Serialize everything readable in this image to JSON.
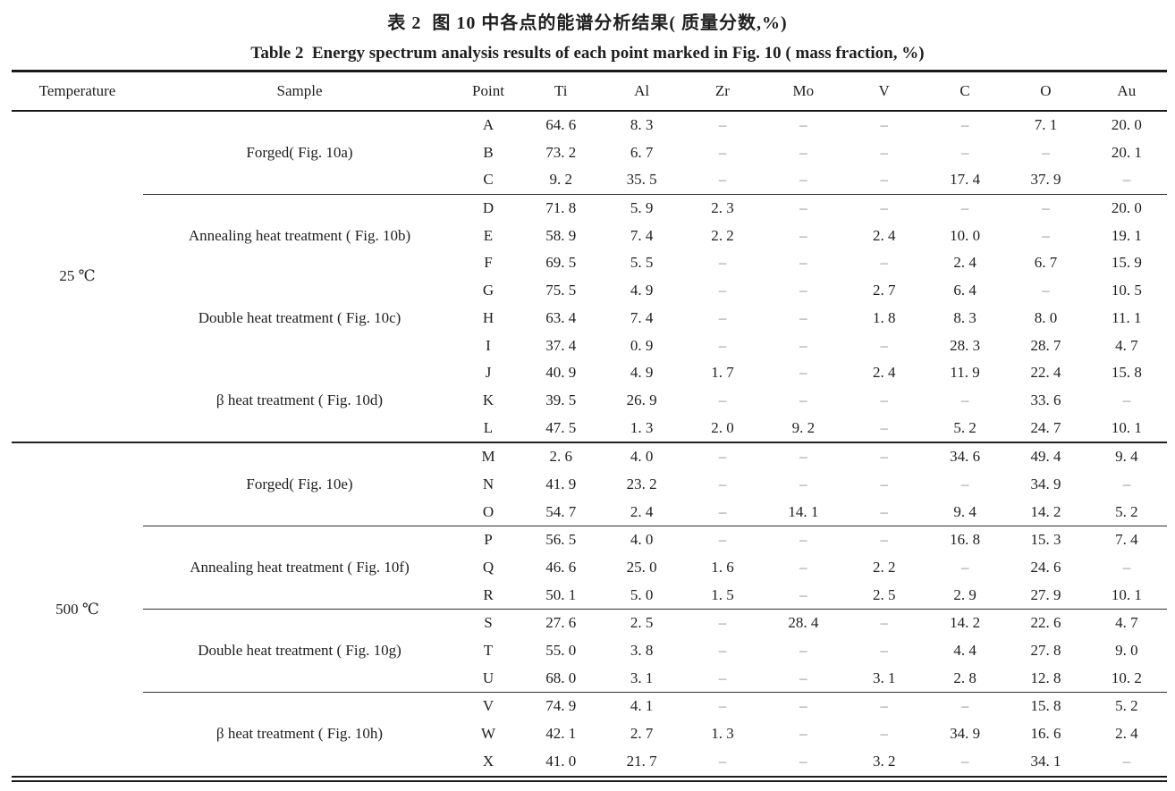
{
  "title_zh": "表 2  图 10 中各点的能谱分析结果( 质量分数,%)",
  "title_en": "Table 2  Energy spectrum analysis results of each point marked in Fig. 10 ( mass fraction, %)",
  "dash": "–",
  "columns": [
    "Temperature",
    "Sample",
    "Point",
    "Ti",
    "Al",
    "Zr",
    "Mo",
    "V",
    "C",
    "O",
    "Au"
  ],
  "temperature_groups": [
    {
      "temperature": "25 ℃",
      "sample_groups": [
        {
          "sample": "Forged( Fig. 10a)",
          "rule_before": "none",
          "rows": [
            {
              "point": "A",
              "values": [
                "64. 6",
                "8. 3",
                "–",
                "–",
                "–",
                "–",
                "7. 1",
                "20. 0"
              ]
            },
            {
              "point": "B",
              "values": [
                "73. 2",
                "6. 7",
                "–",
                "–",
                "–",
                "–",
                "–",
                "20. 1"
              ]
            },
            {
              "point": "C",
              "values": [
                "9. 2",
                "35. 5",
                "–",
                "–",
                "–",
                "17. 4",
                "37. 9",
                "–"
              ]
            }
          ]
        },
        {
          "sample": "Annealing heat treatment ( Fig. 10b)",
          "rule_before": "partial",
          "rows": [
            {
              "point": "D",
              "values": [
                "71. 8",
                "5. 9",
                "2. 3",
                "–",
                "–",
                "–",
                "–",
                "20. 0"
              ]
            },
            {
              "point": "E",
              "values": [
                "58. 9",
                "7. 4",
                "2. 2",
                "–",
                "2. 4",
                "10. 0",
                "–",
                "19. 1"
              ]
            },
            {
              "point": "F",
              "values": [
                "69. 5",
                "5. 5",
                "–",
                "–",
                "–",
                "2. 4",
                "6. 7",
                "15. 9"
              ]
            }
          ]
        },
        {
          "sample": "Double heat treatment ( Fig. 10c)",
          "rule_before": "none",
          "rows": [
            {
              "point": "G",
              "values": [
                "75. 5",
                "4. 9",
                "–",
                "–",
                "2. 7",
                "6. 4",
                "–",
                "10. 5"
              ]
            },
            {
              "point": "H",
              "values": [
                "63. 4",
                "7. 4",
                "–",
                "–",
                "1. 8",
                "8. 3",
                "8. 0",
                "11. 1"
              ]
            },
            {
              "point": "I",
              "values": [
                "37. 4",
                "0. 9",
                "–",
                "–",
                "–",
                "28. 3",
                "28. 7",
                "4. 7"
              ]
            }
          ]
        },
        {
          "sample": "β heat treatment ( Fig. 10d)",
          "rule_before": "none",
          "rows": [
            {
              "point": "J",
              "values": [
                "40. 9",
                "4. 9",
                "1. 7",
                "–",
                "2. 4",
                "11. 9",
                "22. 4",
                "15. 8"
              ]
            },
            {
              "point": "K",
              "values": [
                "39. 5",
                "26. 9",
                "–",
                "–",
                "–",
                "–",
                "33. 6",
                "–"
              ]
            },
            {
              "point": "L",
              "values": [
                "47. 5",
                "1. 3",
                "2. 0",
                "9. 2",
                "–",
                "5. 2",
                "24. 7",
                "10. 1"
              ]
            }
          ]
        }
      ]
    },
    {
      "temperature": "500 ℃",
      "sample_groups": [
        {
          "sample": "Forged( Fig. 10e)",
          "rule_before": "full",
          "rows": [
            {
              "point": "M",
              "values": [
                "2. 6",
                "4. 0",
                "–",
                "–",
                "–",
                "34. 6",
                "49. 4",
                "9. 4"
              ]
            },
            {
              "point": "N",
              "values": [
                "41. 9",
                "23. 2",
                "–",
                "–",
                "–",
                "–",
                "34. 9",
                "–"
              ]
            },
            {
              "point": "O",
              "values": [
                "54. 7",
                "2. 4",
                "–",
                "14. 1",
                "–",
                "9. 4",
                "14. 2",
                "5. 2"
              ]
            }
          ]
        },
        {
          "sample": "Annealing heat treatment ( Fig. 10f)",
          "rule_before": "partial",
          "rows": [
            {
              "point": "P",
              "values": [
                "56. 5",
                "4. 0",
                "–",
                "–",
                "–",
                "16. 8",
                "15. 3",
                "7. 4"
              ]
            },
            {
              "point": "Q",
              "values": [
                "46. 6",
                "25. 0",
                "1. 6",
                "–",
                "2. 2",
                "–",
                "24. 6",
                "–"
              ]
            },
            {
              "point": "R",
              "values": [
                "50. 1",
                "5. 0",
                "1. 5",
                "–",
                "2. 5",
                "2. 9",
                "27. 9",
                "10. 1"
              ]
            }
          ]
        },
        {
          "sample": "Double heat treatment ( Fig. 10g)",
          "rule_before": "partial",
          "rows": [
            {
              "point": "S",
              "values": [
                "27. 6",
                "2. 5",
                "–",
                "28. 4",
                "–",
                "14. 2",
                "22. 6",
                "4. 7"
              ]
            },
            {
              "point": "T",
              "values": [
                "55. 0",
                "3. 8",
                "–",
                "–",
                "–",
                "4. 4",
                "27. 8",
                "9. 0"
              ]
            },
            {
              "point": "U",
              "values": [
                "68. 0",
                "3. 1",
                "–",
                "–",
                "3. 1",
                "2. 8",
                "12. 8",
                "10. 2"
              ]
            }
          ]
        },
        {
          "sample": "β heat treatment ( Fig. 10h)",
          "rule_before": "partial",
          "rows": [
            {
              "point": "V",
              "values": [
                "74. 9",
                "4. 1",
                "–",
                "–",
                "–",
                "–",
                "15. 8",
                "5. 2"
              ]
            },
            {
              "point": "W",
              "values": [
                "42. 1",
                "2. 7",
                "1. 3",
                "–",
                "–",
                "34. 9",
                "16. 6",
                "2. 4"
              ]
            },
            {
              "point": "X",
              "values": [
                "41. 0",
                "21. 7",
                "–",
                "–",
                "3. 2",
                "–",
                "34. 1",
                "–"
              ]
            }
          ]
        }
      ]
    }
  ]
}
